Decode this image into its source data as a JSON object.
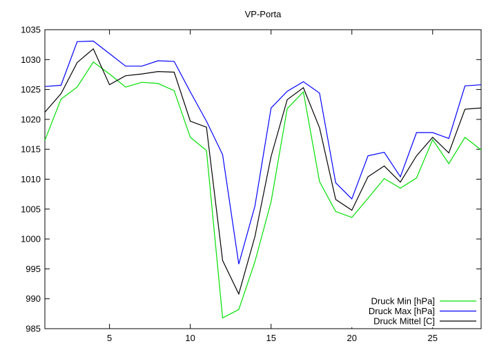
{
  "chart_data": {
    "type": "line",
    "title": "VP-Porta",
    "xlabel": "",
    "ylabel": "",
    "xlim": [
      1,
      28
    ],
    "ylim": [
      985,
      1035
    ],
    "x_ticks": [
      5,
      10,
      15,
      20,
      25
    ],
    "y_ticks": [
      985,
      990,
      995,
      1000,
      1005,
      1010,
      1015,
      1020,
      1025,
      1030,
      1035
    ],
    "grid": false,
    "legend_position": "bottom-right",
    "x": [
      1,
      2,
      3,
      4,
      5,
      6,
      7,
      8,
      9,
      10,
      11,
      12,
      13,
      14,
      15,
      16,
      17,
      18,
      19,
      20,
      21,
      22,
      23,
      24,
      25,
      26,
      27,
      28
    ],
    "series": [
      {
        "name": "Druck Min [hPa]",
        "color": "#00e000",
        "values": [
          1016.5,
          1023.4,
          1025.4,
          1029.6,
          1027.6,
          1025.4,
          1026.2,
          1026.0,
          1024.8,
          1017.0,
          1014.8,
          986.8,
          988.2,
          996.2,
          1006.2,
          1021.8,
          1024.6,
          1009.6,
          1004.6,
          1003.6,
          1006.8,
          1010.1,
          1008.5,
          1010.2,
          1016.6,
          1012.6,
          1017.0,
          1014.9
        ]
      },
      {
        "name": "Druck Max [hPa]",
        "color": "#0000ff",
        "values": [
          1025.5,
          1025.7,
          1033.0,
          1033.1,
          1031.0,
          1028.9,
          1028.9,
          1029.8,
          1029.7,
          1024.6,
          1019.7,
          1014.1,
          995.8,
          1005.5,
          1021.9,
          1024.7,
          1026.3,
          1024.4,
          1009.4,
          1006.7,
          1013.9,
          1014.5,
          1010.4,
          1017.8,
          1017.8,
          1016.8,
          1025.6,
          1025.8
        ]
      },
      {
        "name": "Druck Mittel [C]",
        "color": "#000000",
        "values": [
          1021.2,
          1024.3,
          1029.5,
          1031.8,
          1025.8,
          1027.3,
          1027.6,
          1028.0,
          1027.9,
          1019.7,
          1018.7,
          996.4,
          990.8,
          1000.4,
          1013.8,
          1023.3,
          1025.3,
          1018.6,
          1006.6,
          1004.8,
          1010.4,
          1012.2,
          1009.5,
          1013.9,
          1017.0,
          1014.4,
          1021.7,
          1021.9
        ]
      }
    ]
  }
}
